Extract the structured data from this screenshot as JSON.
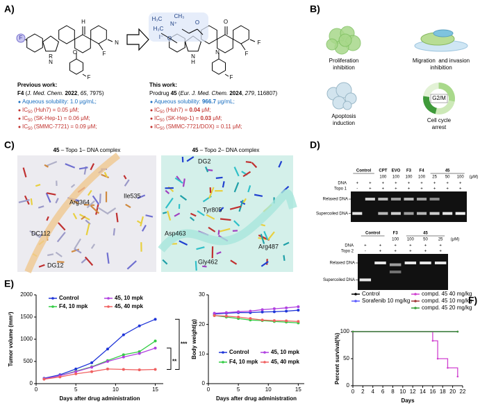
{
  "panel_labels": [
    "A)",
    "B)",
    "C)",
    "D)",
    "E)",
    "F)"
  ],
  "panel_a": {
    "left_atoms": [
      "R",
      "N",
      "H",
      "O",
      "N",
      "F",
      "F",
      "F"
    ],
    "right_atoms": [
      "N",
      "H",
      "O",
      "N",
      "F",
      "F",
      "F",
      "O",
      "O",
      "H₃C",
      "CH₃",
      "H₃C",
      "N⁺",
      "I⁻"
    ],
    "previous": {
      "heading": "Previous work:",
      "citation": [
        "F4",
        " (",
        "J. Med. Chem.",
        " ",
        "2022",
        ", ",
        "65",
        ", 7975)"
      ],
      "bullets": [
        [
          "Aqueous solubility: 1.0 μg/mL;"
        ],
        [
          "IC",
          "50",
          " (Huh7) = 0.05 μM;"
        ],
        [
          "IC",
          "50",
          " (SK-Hep-1) = 0.06 μM;"
        ],
        [
          "IC",
          "50",
          " (SMMC-7721) = 0.09 μM;"
        ]
      ]
    },
    "this": {
      "heading": "This work:",
      "citation": [
        "Prodrug ",
        "45",
        " (",
        "Eur. J. Med. Chem.",
        " ",
        "2024",
        ", ",
        "279",
        ", 116807)"
      ],
      "bullets": [
        [
          "Aqueous solubility: ",
          "966.7",
          " μg/mL;"
        ],
        [
          "IC",
          "50",
          " (Huh7) = ",
          "0.04",
          " μM;"
        ],
        [
          "IC",
          "50",
          " (SK-Hep-1) = ",
          "0.03",
          " μM;"
        ],
        [
          "IC",
          "50",
          " (SMMC-7721/DOX) = 0.11 μM;"
        ]
      ]
    }
  },
  "panel_b": {
    "labels": [
      [
        "Proliferation",
        "inhibition"
      ],
      [
        "Migration  and invasion",
        "inhibition"
      ],
      [
        "Apoptosis",
        "induction"
      ],
      [
        "Cell cycle",
        "arrest"
      ]
    ],
    "phase": "G2/M"
  },
  "panel_c": {
    "titles": [
      [
        "45",
        " – Topo 1– DNA complex"
      ],
      [
        "45",
        " – Topo 2– DNA complex"
      ]
    ],
    "left_residues": [
      "Arg364",
      "Ile535",
      "DC112",
      "DG12"
    ],
    "right_residues": [
      "DG2",
      "Tyr805",
      "Asp463",
      "Arg487",
      "Gly462"
    ]
  },
  "panel_d": {
    "gel1": {
      "lanes": [
        "Control",
        "CPT",
        "EVO",
        "F3",
        "F4",
        "45"
      ],
      "concentrations": [
        100,
        100,
        100,
        100,
        25,
        50,
        100
      ],
      "unit": "(μM)",
      "rows": [
        {
          "name": "DNA",
          "signs": [
            "+",
            "+",
            "+",
            "+",
            "+",
            "+",
            "+",
            "+",
            "+"
          ]
        },
        {
          "name": "Topo 1",
          "signs": [
            "-",
            "+",
            "+",
            "+",
            "+",
            "+",
            "+",
            "+",
            "+"
          ]
        }
      ],
      "bands": [
        "Relaxed DNA",
        "Supercoiled DNA"
      ]
    },
    "gel2": {
      "lanes": [
        "Control",
        "F3",
        "45"
      ],
      "concentrations": [
        100,
        100,
        50,
        25
      ],
      "unit": "(μM)",
      "rows": [
        {
          "name": "DNA",
          "signs": [
            "+",
            "+",
            "+",
            "+",
            "+",
            "+"
          ]
        },
        {
          "name": "Topo 2",
          "signs": [
            "-",
            "+",
            "+",
            "+",
            "+",
            "+"
          ]
        }
      ],
      "bands": [
        "Relaxed DNA",
        "Supercoiled DNA"
      ]
    }
  },
  "panel_e": {
    "tumor": {
      "type": "line",
      "xlabel": "Days after drug administration",
      "ylabel": "Tumor volume (mm³)",
      "x": [
        1,
        3,
        5,
        7,
        9,
        11,
        13,
        15
      ],
      "xlim": [
        0,
        16
      ],
      "xticks": [
        0,
        5,
        10,
        15
      ],
      "ylim": [
        0,
        2000
      ],
      "yticks": [
        0,
        500,
        1000,
        1500,
        2000
      ],
      "series": [
        {
          "name": "Control",
          "color": "#1f35d8",
          "values": [
            120,
            200,
            330,
            470,
            780,
            1100,
            1300,
            1450
          ]
        },
        {
          "name": "F4, 10 mpk",
          "color": "#33cc44",
          "values": [
            110,
            180,
            280,
            380,
            520,
            650,
            720,
            960
          ]
        },
        {
          "name": "45, 10 mpk",
          "color": "#b040e0",
          "values": [
            110,
            180,
            270,
            370,
            500,
            600,
            680,
            800
          ]
        },
        {
          "name": "45, 40 mpk",
          "color": "#f06060",
          "values": [
            100,
            150,
            220,
            270,
            330,
            320,
            310,
            320
          ]
        }
      ],
      "significance": [
        "**",
        "***"
      ]
    },
    "weight": {
      "type": "line",
      "xlabel": "Days after drug administration",
      "ylabel": "Body weight(g)",
      "x": [
        1,
        3,
        5,
        7,
        9,
        11,
        13,
        15
      ],
      "xlim": [
        0,
        16
      ],
      "xticks": [
        0,
        5,
        10,
        15
      ],
      "ylim": [
        0,
        30
      ],
      "yticks": [
        0,
        10,
        20,
        30
      ],
      "series": [
        {
          "name": "Control",
          "color": "#1f35d8",
          "values": [
            23.5,
            23.8,
            24,
            24,
            24.2,
            24.3,
            24.5,
            24.8
          ]
        },
        {
          "name": "F4, 10 mpk",
          "color": "#33cc44",
          "values": [
            23,
            22.5,
            22,
            21.5,
            21.3,
            21,
            20.8,
            20.5
          ]
        },
        {
          "name": "45, 10 mpk",
          "color": "#b040e0",
          "values": [
            23.8,
            24,
            24.3,
            24.5,
            25,
            25.3,
            25.6,
            26
          ]
        },
        {
          "name": "45, 40 mpk",
          "color": "#f06060",
          "values": [
            23,
            22.8,
            22.5,
            22,
            21.5,
            21.3,
            21.2,
            21
          ]
        }
      ]
    }
  },
  "panel_f": {
    "type": "step",
    "xlabel": "Days",
    "ylabel": "Percent survival(%)",
    "xlim": [
      0,
      22
    ],
    "xticks": [
      0,
      2,
      4,
      6,
      8,
      10,
      12,
      14,
      16,
      18,
      20,
      22
    ],
    "ylim": [
      0,
      100
    ],
    "yticks": [
      0,
      50,
      100
    ],
    "series": [
      {
        "name": "Control",
        "color": "#000000",
        "x": [
          0,
          21
        ],
        "values": [
          100,
          100
        ]
      },
      {
        "name": "Sorafenib 10 mg/kg",
        "color": "#5a5aff",
        "x": [
          0,
          21
        ],
        "values": [
          100,
          100
        ]
      },
      {
        "name": "compd. 45 40 mg/kg",
        "color": "#d040d0",
        "x": [
          0,
          16,
          17,
          19,
          21
        ],
        "values": [
          100,
          83,
          50,
          33,
          17
        ]
      },
      {
        "name": "compd. 45 10 mg/kg",
        "color": "#a03838",
        "x": [
          0,
          21
        ],
        "values": [
          100,
          100
        ]
      },
      {
        "name": "compd. 45 20 mg/kg",
        "color": "#3aa03a",
        "x": [
          0,
          21
        ],
        "values": [
          100,
          100
        ]
      }
    ]
  }
}
